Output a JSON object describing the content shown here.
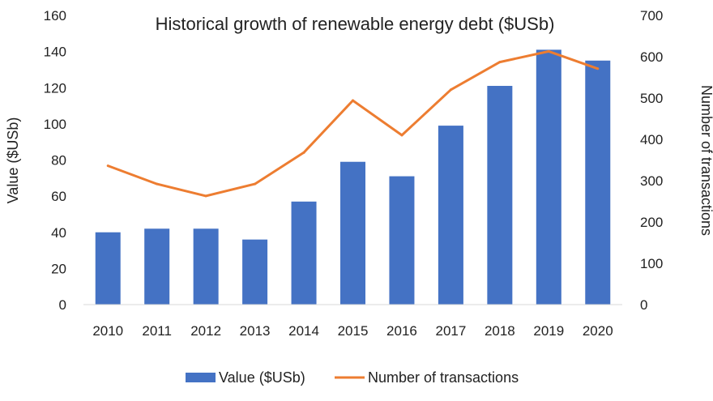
{
  "chart_data": {
    "type": "bar",
    "title": "Historical growth of renewable energy debt ($USb)",
    "categories": [
      "2010",
      "2011",
      "2012",
      "2013",
      "2014",
      "2015",
      "2016",
      "2017",
      "2018",
      "2019",
      "2020"
    ],
    "series": [
      {
        "name": "Value ($USb)",
        "type": "bar",
        "axis": "left",
        "color": "#4472C4",
        "values": [
          40,
          42,
          42,
          36,
          57,
          79,
          71,
          99,
          121,
          141,
          135
        ]
      },
      {
        "name": "Number of transactions",
        "type": "line",
        "axis": "right",
        "color": "#ED7D31",
        "values": [
          336,
          292,
          263,
          292,
          368,
          494,
          410,
          520,
          587,
          613,
          571
        ]
      }
    ],
    "ylabel": "Value ($USb)",
    "y2label": "Number of transactions",
    "ylim": [
      0,
      160
    ],
    "yticks": [
      "0",
      "20",
      "40",
      "60",
      "80",
      "100",
      "120",
      "140",
      "160"
    ],
    "y2lim": [
      0,
      700
    ],
    "y2ticks": [
      "0",
      "100",
      "200",
      "300",
      "400",
      "500",
      "600",
      "700"
    ],
    "grid": false,
    "legend_position": "bottom"
  }
}
